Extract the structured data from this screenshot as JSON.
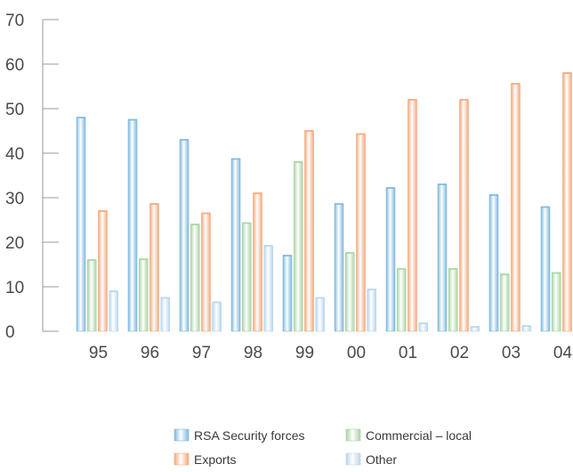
{
  "chart_data": {
    "type": "bar",
    "title": "",
    "xlabel": "",
    "ylabel": "",
    "ylim": [
      0,
      70
    ],
    "yticks": [
      0,
      10,
      20,
      30,
      40,
      50,
      60,
      70
    ],
    "categories": [
      "95",
      "96",
      "97",
      "98",
      "99",
      "00",
      "01",
      "02",
      "03",
      "04"
    ],
    "series": [
      {
        "name": "RSA Security forces",
        "color": "#7fb8e0",
        "values": [
          48,
          47.5,
          43,
          38.7,
          17,
          28.6,
          32.2,
          33,
          30.6,
          27.9
        ]
      },
      {
        "name": "Commercial – local",
        "color": "#a9d4a4",
        "values": [
          16,
          16.2,
          24,
          24.3,
          38,
          17.6,
          14,
          14,
          12.8,
          13.1
        ]
      },
      {
        "name": "Exports",
        "color": "#f2a97c",
        "values": [
          27,
          28.6,
          26.5,
          31,
          45,
          44.3,
          52,
          52,
          55.6,
          58
        ]
      },
      {
        "name": "Other",
        "color": "#b7d6ef",
        "values": [
          9,
          7.5,
          6.5,
          19.2,
          7.5,
          9.4,
          1.8,
          1,
          1.2,
          1
        ]
      }
    ],
    "grid": false,
    "legend_position": "bottom-center",
    "legend": {
      "rows": [
        [
          "RSA Security forces",
          "Commercial – local"
        ],
        [
          "Exports",
          "Other"
        ]
      ]
    }
  }
}
